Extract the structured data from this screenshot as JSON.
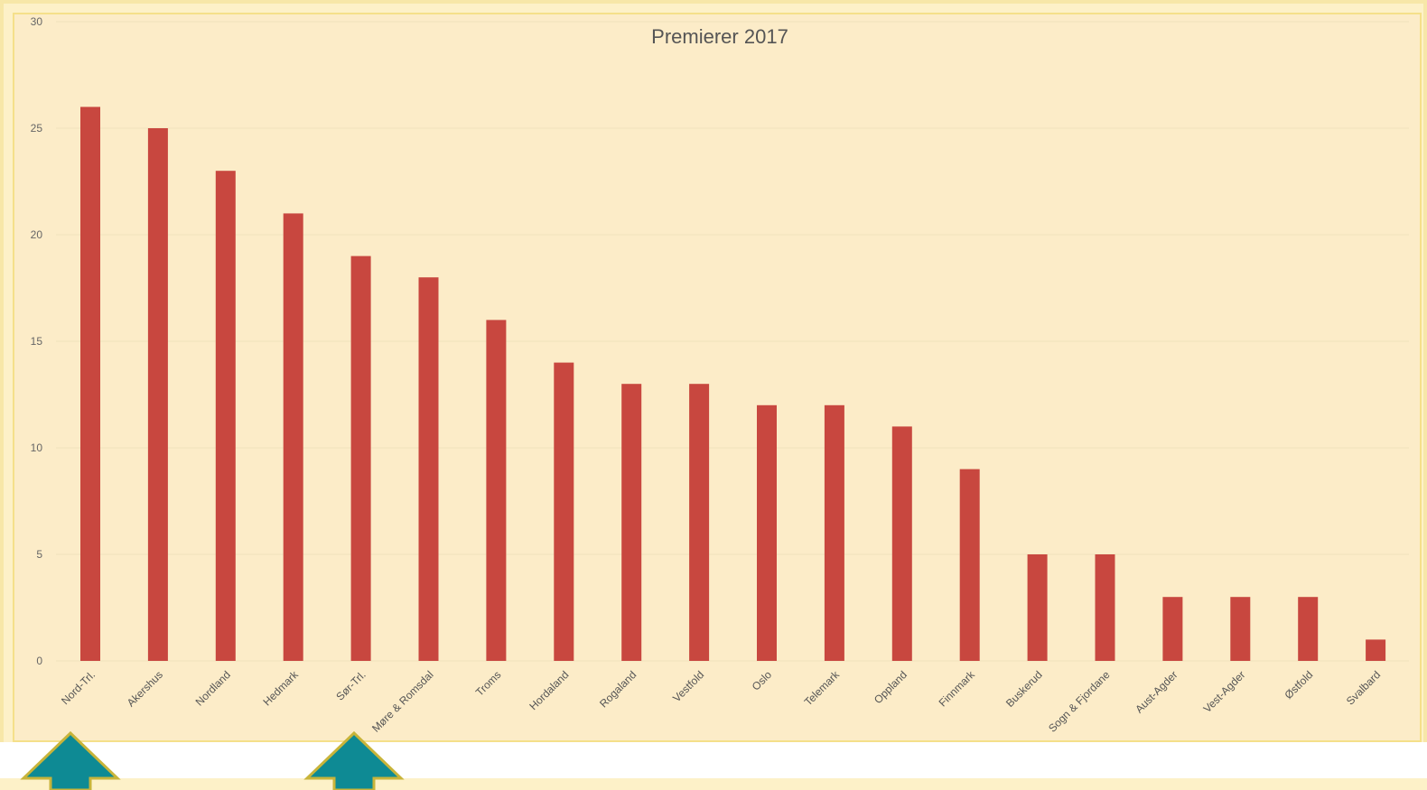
{
  "chart_data": {
    "type": "bar",
    "title": "Premierer 2017",
    "xlabel": "",
    "ylabel": "",
    "ylim": [
      0,
      30
    ],
    "yticks": [
      0,
      5,
      10,
      15,
      20,
      25,
      30
    ],
    "grid": true,
    "categories": [
      "Nord-Trl.",
      "Akershus",
      "Nordland",
      "Hedmark",
      "Sør-Trl.",
      "Møre & Romsdal",
      "Troms",
      "Hordaland",
      "Rogaland",
      "Vestfold",
      "Oslo",
      "Telemark",
      "Oppland",
      "Finnmark",
      "Buskerud",
      "Sogn & Fjordane",
      "Aust-Agder",
      "Vest-Agder",
      "Østfold",
      "Svalbard"
    ],
    "values": [
      26,
      25,
      23,
      21,
      19,
      18,
      16,
      14,
      13,
      13,
      12,
      12,
      11,
      9,
      5,
      5,
      3,
      3,
      3,
      1
    ],
    "colors": {
      "bar": "#c8473f",
      "grid": "#f1e2bd",
      "arrow": "#0e8a94",
      "arrow_border": "#c8b43a"
    }
  }
}
